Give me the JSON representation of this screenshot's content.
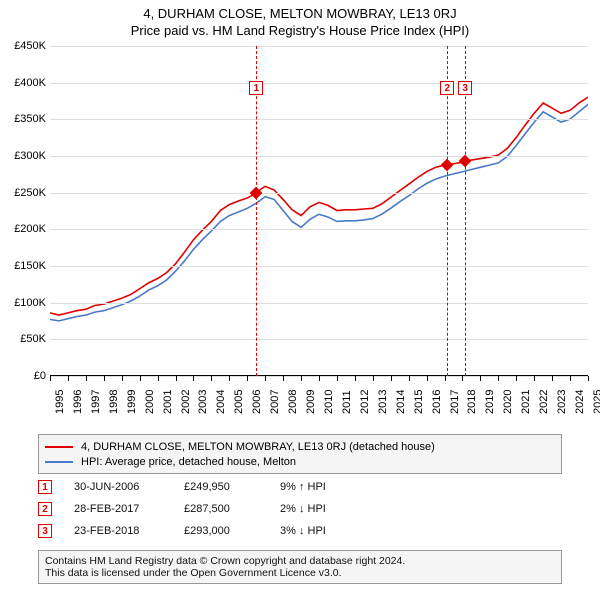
{
  "title_line1": "4, DURHAM CLOSE, MELTON MOWBRAY, LE13 0RJ",
  "title_line2": "Price paid vs. HM Land Registry's House Price Index (HPI)",
  "chart": {
    "type": "line",
    "background_color": "#ffffff",
    "grid_color": "#dedede",
    "axis_color": "#000000",
    "label_fontsize": 11,
    "y": {
      "min": 0,
      "max": 450000,
      "step": 50000,
      "labels": [
        "£0",
        "£50K",
        "£100K",
        "£150K",
        "£200K",
        "£250K",
        "£300K",
        "£350K",
        "£400K",
        "£450K"
      ]
    },
    "x": {
      "min": 1995,
      "max": 2025,
      "step": 1,
      "labels": [
        "1995",
        "1996",
        "1997",
        "1998",
        "1999",
        "2000",
        "2001",
        "2002",
        "2003",
        "2004",
        "2005",
        "2006",
        "2007",
        "2008",
        "2009",
        "2010",
        "2011",
        "2012",
        "2013",
        "2014",
        "2015",
        "2016",
        "2017",
        "2018",
        "2019",
        "2020",
        "2021",
        "2022",
        "2023",
        "2024",
        "2025"
      ]
    },
    "series": [
      {
        "name": "subject",
        "color": "#e00000",
        "width": 1.6,
        "points": [
          [
            1995,
            85000
          ],
          [
            1995.5,
            82000
          ],
          [
            1996,
            85000
          ],
          [
            1996.5,
            88000
          ],
          [
            1997,
            90000
          ],
          [
            1997.5,
            95000
          ],
          [
            1998,
            97000
          ],
          [
            1998.5,
            101000
          ],
          [
            1999,
            105000
          ],
          [
            1999.5,
            110000
          ],
          [
            2000,
            118000
          ],
          [
            2000.5,
            126000
          ],
          [
            2001,
            132000
          ],
          [
            2001.5,
            140000
          ],
          [
            2002,
            152000
          ],
          [
            2002.5,
            168000
          ],
          [
            2003,
            185000
          ],
          [
            2003.5,
            198000
          ],
          [
            2004,
            210000
          ],
          [
            2004.5,
            225000
          ],
          [
            2005,
            233000
          ],
          [
            2005.5,
            238000
          ],
          [
            2006,
            242000
          ],
          [
            2006.3,
            246000
          ],
          [
            2006.5,
            249950
          ],
          [
            2007,
            258000
          ],
          [
            2007.5,
            253000
          ],
          [
            2008,
            240000
          ],
          [
            2008.5,
            226000
          ],
          [
            2009,
            218000
          ],
          [
            2009.5,
            230000
          ],
          [
            2010,
            236000
          ],
          [
            2010.5,
            232000
          ],
          [
            2011,
            225000
          ],
          [
            2011.5,
            226000
          ],
          [
            2012,
            226000
          ],
          [
            2012.5,
            227000
          ],
          [
            2013,
            228000
          ],
          [
            2013.5,
            234000
          ],
          [
            2014,
            243000
          ],
          [
            2014.5,
            252000
          ],
          [
            2015,
            261000
          ],
          [
            2015.5,
            270000
          ],
          [
            2016,
            278000
          ],
          [
            2016.5,
            284000
          ],
          [
            2017,
            287000
          ],
          [
            2017.15,
            287500
          ],
          [
            2017.5,
            289000
          ],
          [
            2018,
            291000
          ],
          [
            2018.15,
            293000
          ],
          [
            2018.5,
            294000
          ],
          [
            2019,
            296000
          ],
          [
            2019.5,
            298000
          ],
          [
            2020,
            301000
          ],
          [
            2020.5,
            310000
          ],
          [
            2021,
            325000
          ],
          [
            2021.5,
            342000
          ],
          [
            2022,
            358000
          ],
          [
            2022.5,
            372000
          ],
          [
            2023,
            365000
          ],
          [
            2023.5,
            358000
          ],
          [
            2024,
            362000
          ],
          [
            2024.5,
            372000
          ],
          [
            2025,
            380000
          ]
        ]
      },
      {
        "name": "hpi",
        "color": "#4a7ac7",
        "width": 1.6,
        "points": [
          [
            1995,
            76000
          ],
          [
            1995.5,
            74000
          ],
          [
            1996,
            77000
          ],
          [
            1996.5,
            80000
          ],
          [
            1997,
            82000
          ],
          [
            1997.5,
            86000
          ],
          [
            1998,
            88000
          ],
          [
            1998.5,
            92000
          ],
          [
            1999,
            96000
          ],
          [
            1999.5,
            101000
          ],
          [
            2000,
            108000
          ],
          [
            2000.5,
            116000
          ],
          [
            2001,
            122000
          ],
          [
            2001.5,
            130000
          ],
          [
            2002,
            142000
          ],
          [
            2002.5,
            156000
          ],
          [
            2003,
            172000
          ],
          [
            2003.5,
            185000
          ],
          [
            2004,
            197000
          ],
          [
            2004.5,
            210000
          ],
          [
            2005,
            218000
          ],
          [
            2005.5,
            223000
          ],
          [
            2006,
            228000
          ],
          [
            2006.5,
            235000
          ],
          [
            2007,
            244000
          ],
          [
            2007.5,
            240000
          ],
          [
            2008,
            225000
          ],
          [
            2008.5,
            210000
          ],
          [
            2009,
            202000
          ],
          [
            2009.5,
            213000
          ],
          [
            2010,
            220000
          ],
          [
            2010.5,
            216000
          ],
          [
            2011,
            210000
          ],
          [
            2011.5,
            211000
          ],
          [
            2012,
            211000
          ],
          [
            2012.5,
            212000
          ],
          [
            2013,
            214000
          ],
          [
            2013.5,
            220000
          ],
          [
            2014,
            228000
          ],
          [
            2014.5,
            237000
          ],
          [
            2015,
            245000
          ],
          [
            2015.5,
            254000
          ],
          [
            2016,
            262000
          ],
          [
            2016.5,
            268000
          ],
          [
            2017,
            272000
          ],
          [
            2017.5,
            275000
          ],
          [
            2018,
            278000
          ],
          [
            2018.5,
            281000
          ],
          [
            2019,
            284000
          ],
          [
            2019.5,
            287000
          ],
          [
            2020,
            290000
          ],
          [
            2020.5,
            299000
          ],
          [
            2021,
            314000
          ],
          [
            2021.5,
            330000
          ],
          [
            2022,
            346000
          ],
          [
            2022.5,
            360000
          ],
          [
            2023,
            353000
          ],
          [
            2023.5,
            346000
          ],
          [
            2024,
            350000
          ],
          [
            2024.5,
            360000
          ],
          [
            2025,
            370000
          ]
        ]
      }
    ],
    "vlines": [
      {
        "year": 2006.5,
        "color": "#e00000"
      },
      {
        "year": 2017.15,
        "color": "#e00000"
      },
      {
        "year": 2018.15,
        "color": "#e00000"
      }
    ],
    "chart_markers": [
      {
        "n": "1",
        "year": 2006.5,
        "value": 249950,
        "box_color": "#e00000",
        "diamond_color": "#e00000",
        "box_y": 48000
      },
      {
        "n": "2",
        "year": 2017.15,
        "value": 287500,
        "box_color": "#e00000",
        "diamond_color": "#e00000",
        "box_y": 48000
      },
      {
        "n": "3",
        "year": 2018.15,
        "value": 293000,
        "box_color": "#e00000",
        "diamond_color": "#e00000",
        "box_y": 48000
      }
    ]
  },
  "legend": {
    "border_color": "#999999",
    "bg_color": "#f5f5f5",
    "items": [
      {
        "color": "#e00000",
        "text": "4, DURHAM CLOSE, MELTON MOWBRAY, LE13 0RJ (detached house)"
      },
      {
        "color": "#4a7ac7",
        "text": "HPI: Average price, detached house, Melton"
      }
    ]
  },
  "marker_rows": [
    {
      "n": "1",
      "color": "#e00000",
      "date": "30-JUN-2006",
      "price": "£249,950",
      "delta": "9% ↑ HPI"
    },
    {
      "n": "2",
      "color": "#e00000",
      "date": "28-FEB-2017",
      "price": "£287,500",
      "delta": "2% ↓ HPI"
    },
    {
      "n": "3",
      "color": "#e00000",
      "date": "23-FEB-2018",
      "price": "£293,000",
      "delta": "3% ↓ HPI"
    }
  ],
  "footer_line1": "Contains HM Land Registry data © Crown copyright and database right 2024.",
  "footer_line2": "This data is licensed under the Open Government Licence v3.0."
}
